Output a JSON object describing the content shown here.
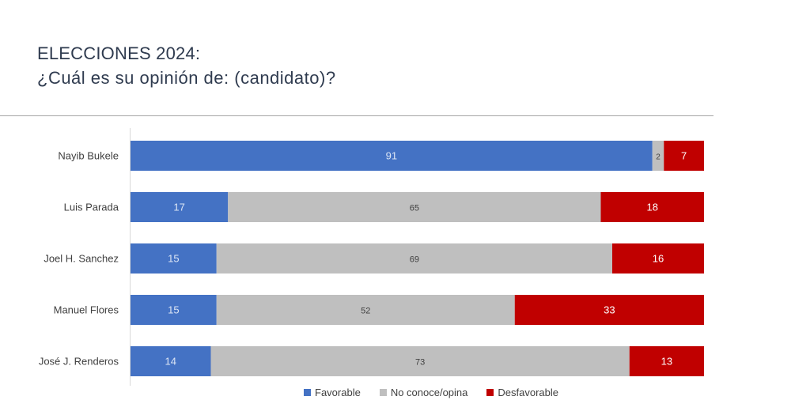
{
  "header": {
    "title": "ELECCIONES 2024:",
    "subtitle": "¿Cuál es su opinión de:  (candidato)?"
  },
  "chart_data": {
    "type": "bar",
    "orientation": "horizontal",
    "stacked": true,
    "categories": [
      "Nayib Bukele",
      "Luis Parada",
      "Joel H. Sanchez",
      "Manuel Flores",
      "José J. Renderos"
    ],
    "series": [
      {
        "name": "Favorable",
        "values": [
          91,
          17,
          15,
          15,
          14
        ],
        "color": "#4472c4",
        "label_color": "#dde6f5"
      },
      {
        "name": "No conoce/opina",
        "values": [
          2,
          65,
          69,
          52,
          73
        ],
        "color": "#bfbfbf",
        "label_color": "#404040"
      },
      {
        "name": "Desfavorable",
        "values": [
          7,
          18,
          16,
          33,
          13
        ],
        "color": "#c00000",
        "label_color": "#ffffff"
      }
    ],
    "xlim": [
      0,
      100
    ],
    "grid": false,
    "legend_position": "bottom"
  }
}
